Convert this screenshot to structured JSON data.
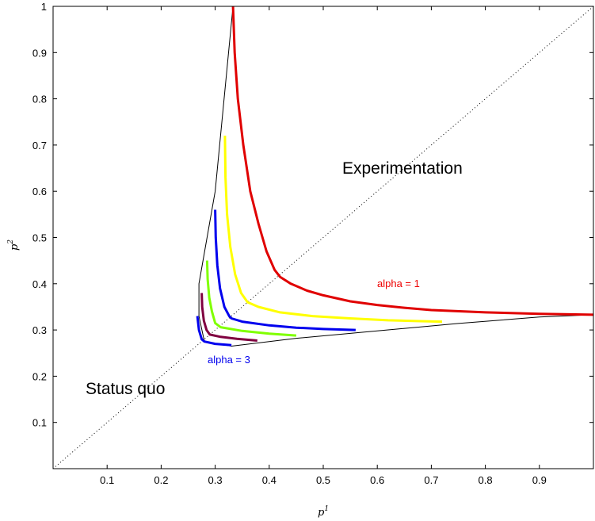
{
  "chart_data": {
    "type": "line",
    "xlabel": {
      "base": "p",
      "sup": "1"
    },
    "ylabel": {
      "base": "p",
      "sup": "2"
    },
    "xlim": [
      0,
      1
    ],
    "ylim": [
      0,
      1
    ],
    "xticks": [
      "0.1",
      "0.2",
      "0.3",
      "0.4",
      "0.5",
      "0.6",
      "0.7",
      "0.8",
      "0.9"
    ],
    "yticks": [
      "0.1",
      "0.2",
      "0.3",
      "0.4",
      "0.5",
      "0.6",
      "0.7",
      "0.8",
      "0.9",
      "1"
    ],
    "annotations": {
      "experimentation": "Experimentation",
      "status_quo": "Status quo",
      "alpha_1": "alpha = 1",
      "alpha_3": "alpha = 3"
    },
    "diagonal": {
      "x": [
        0,
        1
      ],
      "y": [
        0,
        1
      ],
      "style": "dotted",
      "color": "#000000"
    },
    "boundary": {
      "color": "#000000",
      "x": [
        0.333,
        0.3,
        0.27,
        0.27,
        0.28,
        0.33,
        0.45,
        0.6,
        0.75,
        0.9,
        1.0
      ],
      "y": [
        1.0,
        0.6,
        0.4,
        0.33,
        0.275,
        0.265,
        0.282,
        0.298,
        0.314,
        0.328,
        0.333
      ]
    },
    "series": [
      {
        "color": "#e00000",
        "x": [
          0.333,
          0.336,
          0.342,
          0.352,
          0.365,
          0.38,
          0.395,
          0.41,
          0.42,
          0.44,
          0.47,
          0.5,
          0.55,
          0.6,
          0.65,
          0.7,
          0.8,
          0.9,
          1.0
        ],
        "y": [
          1.0,
          0.9,
          0.8,
          0.7,
          0.6,
          0.53,
          0.47,
          0.43,
          0.415,
          0.4,
          0.385,
          0.375,
          0.362,
          0.354,
          0.348,
          0.343,
          0.338,
          0.335,
          0.333
        ]
      },
      {
        "color": "#ffff00",
        "x": [
          0.318,
          0.319,
          0.322,
          0.328,
          0.337,
          0.348,
          0.36,
          0.38,
          0.42,
          0.48,
          0.55,
          0.62,
          0.68,
          0.72
        ],
        "y": [
          0.72,
          0.63,
          0.55,
          0.48,
          0.42,
          0.38,
          0.36,
          0.35,
          0.338,
          0.33,
          0.325,
          0.321,
          0.319,
          0.318
        ]
      },
      {
        "color": "#0000ee",
        "x": [
          0.3,
          0.301,
          0.304,
          0.309,
          0.317,
          0.326,
          0.33,
          0.35,
          0.4,
          0.45,
          0.5,
          0.56
        ],
        "y": [
          0.56,
          0.5,
          0.44,
          0.39,
          0.35,
          0.33,
          0.325,
          0.318,
          0.31,
          0.305,
          0.302,
          0.3
        ]
      },
      {
        "color": "#80ff00",
        "x": [
          0.285,
          0.286,
          0.289,
          0.294,
          0.3,
          0.31,
          0.35,
          0.4,
          0.45
        ],
        "y": [
          0.45,
          0.41,
          0.37,
          0.34,
          0.315,
          0.306,
          0.298,
          0.292,
          0.288
        ]
      },
      {
        "color": "#800040",
        "x": [
          0.275,
          0.276,
          0.279,
          0.284,
          0.29,
          0.31,
          0.34,
          0.378
        ],
        "y": [
          0.38,
          0.35,
          0.32,
          0.3,
          0.29,
          0.285,
          0.281,
          0.277
        ]
      },
      {
        "color": "#0000ee",
        "x": [
          0.267,
          0.27,
          0.275,
          0.28,
          0.3,
          0.33
        ],
        "y": [
          0.33,
          0.3,
          0.28,
          0.275,
          0.27,
          0.267
        ]
      }
    ]
  }
}
